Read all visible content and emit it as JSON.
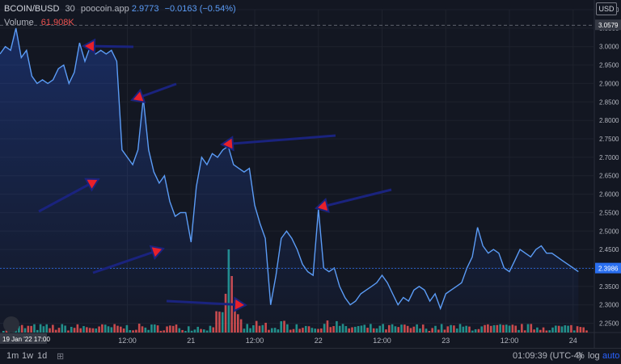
{
  "legend": {
    "symbol": "BCOIN/BUSD",
    "interval": "30",
    "source": "poocoin.app",
    "last": "2.9773",
    "change": "−0.0163 (−0.54%)",
    "volume_label": "Volume",
    "volume_value": "61.908K"
  },
  "currency_button": "USD",
  "price_labels": {
    "high_line": "3.0579",
    "last_line": "2.3986"
  },
  "date_label": "19 Jan '22  17:00",
  "toolbar": {
    "tf_1m": "1m",
    "tf_1w": "1w",
    "tf_1d": "1d",
    "clock": "01:09:39 (UTC-4)",
    "percent": "%",
    "log": "log",
    "auto": "auto"
  },
  "colors": {
    "background": "#131722",
    "line": "#5b9cf6",
    "area_top": "rgba(41,98,255,0.28)",
    "last_price": "#2a6ff0",
    "vol_up": "#26a69a",
    "vol_down": "#ef5350",
    "arrow": "#1a237e",
    "arrowhead": "#e8202a"
  },
  "chart_data": {
    "type": "area",
    "title": "BCOIN/BUSD · 30 · poocoin.app",
    "xlabel": "",
    "ylabel": "",
    "ylim": [
      2.2,
      3.1
    ],
    "ytick_step": 0.05,
    "x_ticks": [
      {
        "x": 24,
        "label": "12:00"
      },
      {
        "x": 36,
        "label": "21"
      },
      {
        "x": 48,
        "label": "12:00"
      },
      {
        "x": 60,
        "label": "22"
      },
      {
        "x": 72,
        "label": "12:00"
      },
      {
        "x": 84,
        "label": "23"
      },
      {
        "x": 96,
        "label": "12:00"
      },
      {
        "x": 108,
        "label": "24"
      }
    ],
    "x_unit": "hours since 19 Jan '22 17:00",
    "price_x": [
      0,
      1,
      2,
      3,
      4,
      5,
      6,
      7,
      8,
      9,
      10,
      11,
      12,
      13,
      14,
      15,
      16,
      17,
      18,
      19,
      20,
      21,
      22,
      23,
      24,
      25,
      26,
      27,
      28,
      29,
      30,
      31,
      32,
      33,
      34,
      35,
      36,
      37,
      38,
      39,
      40,
      41,
      42,
      43,
      44,
      45,
      46,
      47,
      48,
      49,
      50,
      51,
      52,
      53,
      54,
      55,
      56,
      57,
      58,
      59,
      60,
      61,
      62,
      63,
      64,
      65,
      66,
      67,
      68,
      69,
      70,
      71,
      72,
      73,
      74,
      75,
      76,
      77,
      78,
      79,
      80,
      81,
      82,
      83,
      84,
      85,
      86,
      87,
      88,
      89,
      90,
      91,
      92,
      93,
      94,
      95,
      96,
      97,
      98,
      99,
      100,
      101,
      102,
      103,
      104,
      105,
      106,
      107,
      108,
      109
    ],
    "price": [
      2.98,
      3.0,
      2.99,
      3.05,
      2.97,
      2.99,
      2.92,
      2.9,
      2.91,
      2.9,
      2.91,
      2.94,
      2.95,
      2.9,
      2.93,
      3.01,
      2.96,
      3.0,
      2.98,
      2.99,
      2.98,
      2.99,
      2.96,
      2.72,
      2.7,
      2.68,
      2.72,
      2.86,
      2.72,
      2.66,
      2.63,
      2.65,
      2.58,
      2.54,
      2.55,
      2.55,
      2.47,
      2.62,
      2.7,
      2.68,
      2.71,
      2.7,
      2.72,
      2.73,
      2.68,
      2.67,
      2.66,
      2.67,
      2.57,
      2.52,
      2.48,
      2.3,
      2.38,
      2.48,
      2.5,
      2.48,
      2.45,
      2.41,
      2.39,
      2.38,
      2.56,
      2.4,
      2.39,
      2.4,
      2.35,
      2.32,
      2.3,
      2.31,
      2.33,
      2.34,
      2.35,
      2.36,
      2.38,
      2.36,
      2.33,
      2.3,
      2.32,
      2.31,
      2.34,
      2.35,
      2.34,
      2.31,
      2.33,
      2.29,
      2.33,
      2.34,
      2.35,
      2.36,
      2.4,
      2.43,
      2.51,
      2.46,
      2.44,
      2.45,
      2.44,
      2.4,
      2.39,
      2.42,
      2.45,
      2.44,
      2.43,
      2.45,
      2.46,
      2.44,
      2.44,
      2.43,
      2.42,
      2.41,
      2.4,
      2.39
    ],
    "volume_series": "stochastic low bars with spike near x=22",
    "high_line": 3.0579,
    "last_price": 2.3986
  }
}
